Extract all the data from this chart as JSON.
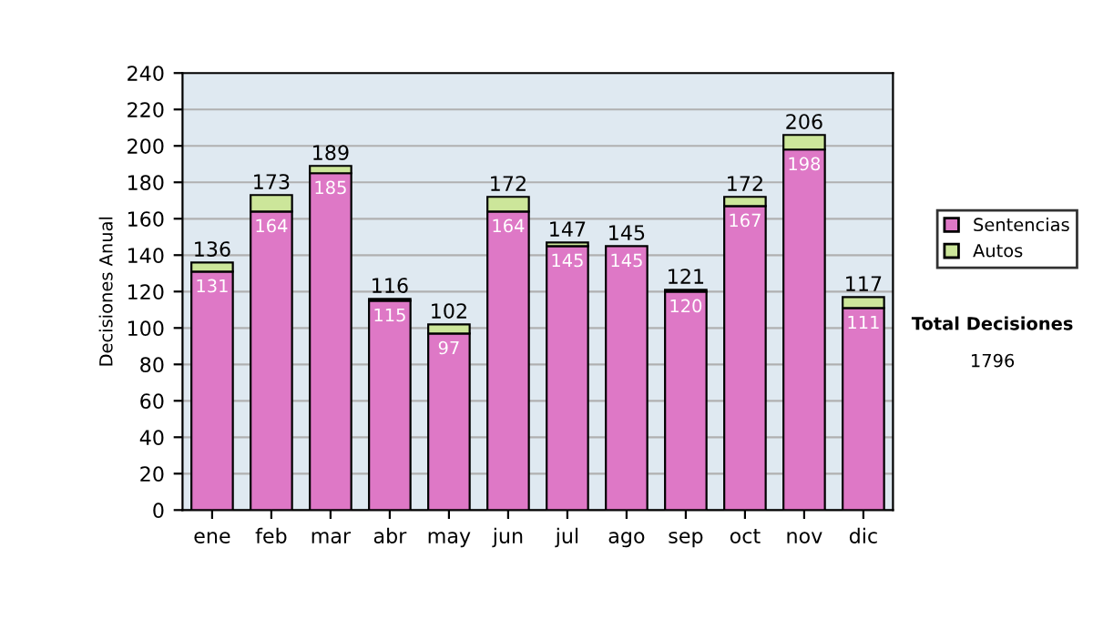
{
  "chart_data": {
    "type": "bar",
    "stacked": true,
    "ylabel": "Decisiones Anual",
    "categories": [
      "ene",
      "feb",
      "mar",
      "abr",
      "may",
      "jun",
      "jul",
      "ago",
      "sep",
      "oct",
      "nov",
      "dic"
    ],
    "series": [
      {
        "name": "Sentencias",
        "color": "#de78c6",
        "values": [
          131,
          164,
          185,
          115,
          97,
          164,
          145,
          145,
          120,
          167,
          198,
          111
        ],
        "value_labels": [
          "131",
          "164",
          "185",
          "115",
          "97",
          "164",
          "145",
          "145",
          "120",
          "167",
          "198",
          "111"
        ]
      },
      {
        "name": "Autos",
        "color": "#cce69a",
        "values": [
          5,
          9,
          4,
          1,
          5,
          8,
          2,
          null,
          1,
          5,
          8,
          6
        ]
      }
    ],
    "totals": [
      "136",
      "173",
      "189",
      "116",
      "102",
      "172",
      "147",
      "145",
      "121",
      "172",
      "206",
      "117"
    ],
    "ylim": [
      0,
      240
    ],
    "yticks": [
      0,
      20,
      40,
      60,
      80,
      100,
      120,
      140,
      160,
      180,
      200,
      220,
      240
    ],
    "grid": "y",
    "legend": "right",
    "annotations": [
      "Total Decisiones",
      "1796"
    ]
  }
}
